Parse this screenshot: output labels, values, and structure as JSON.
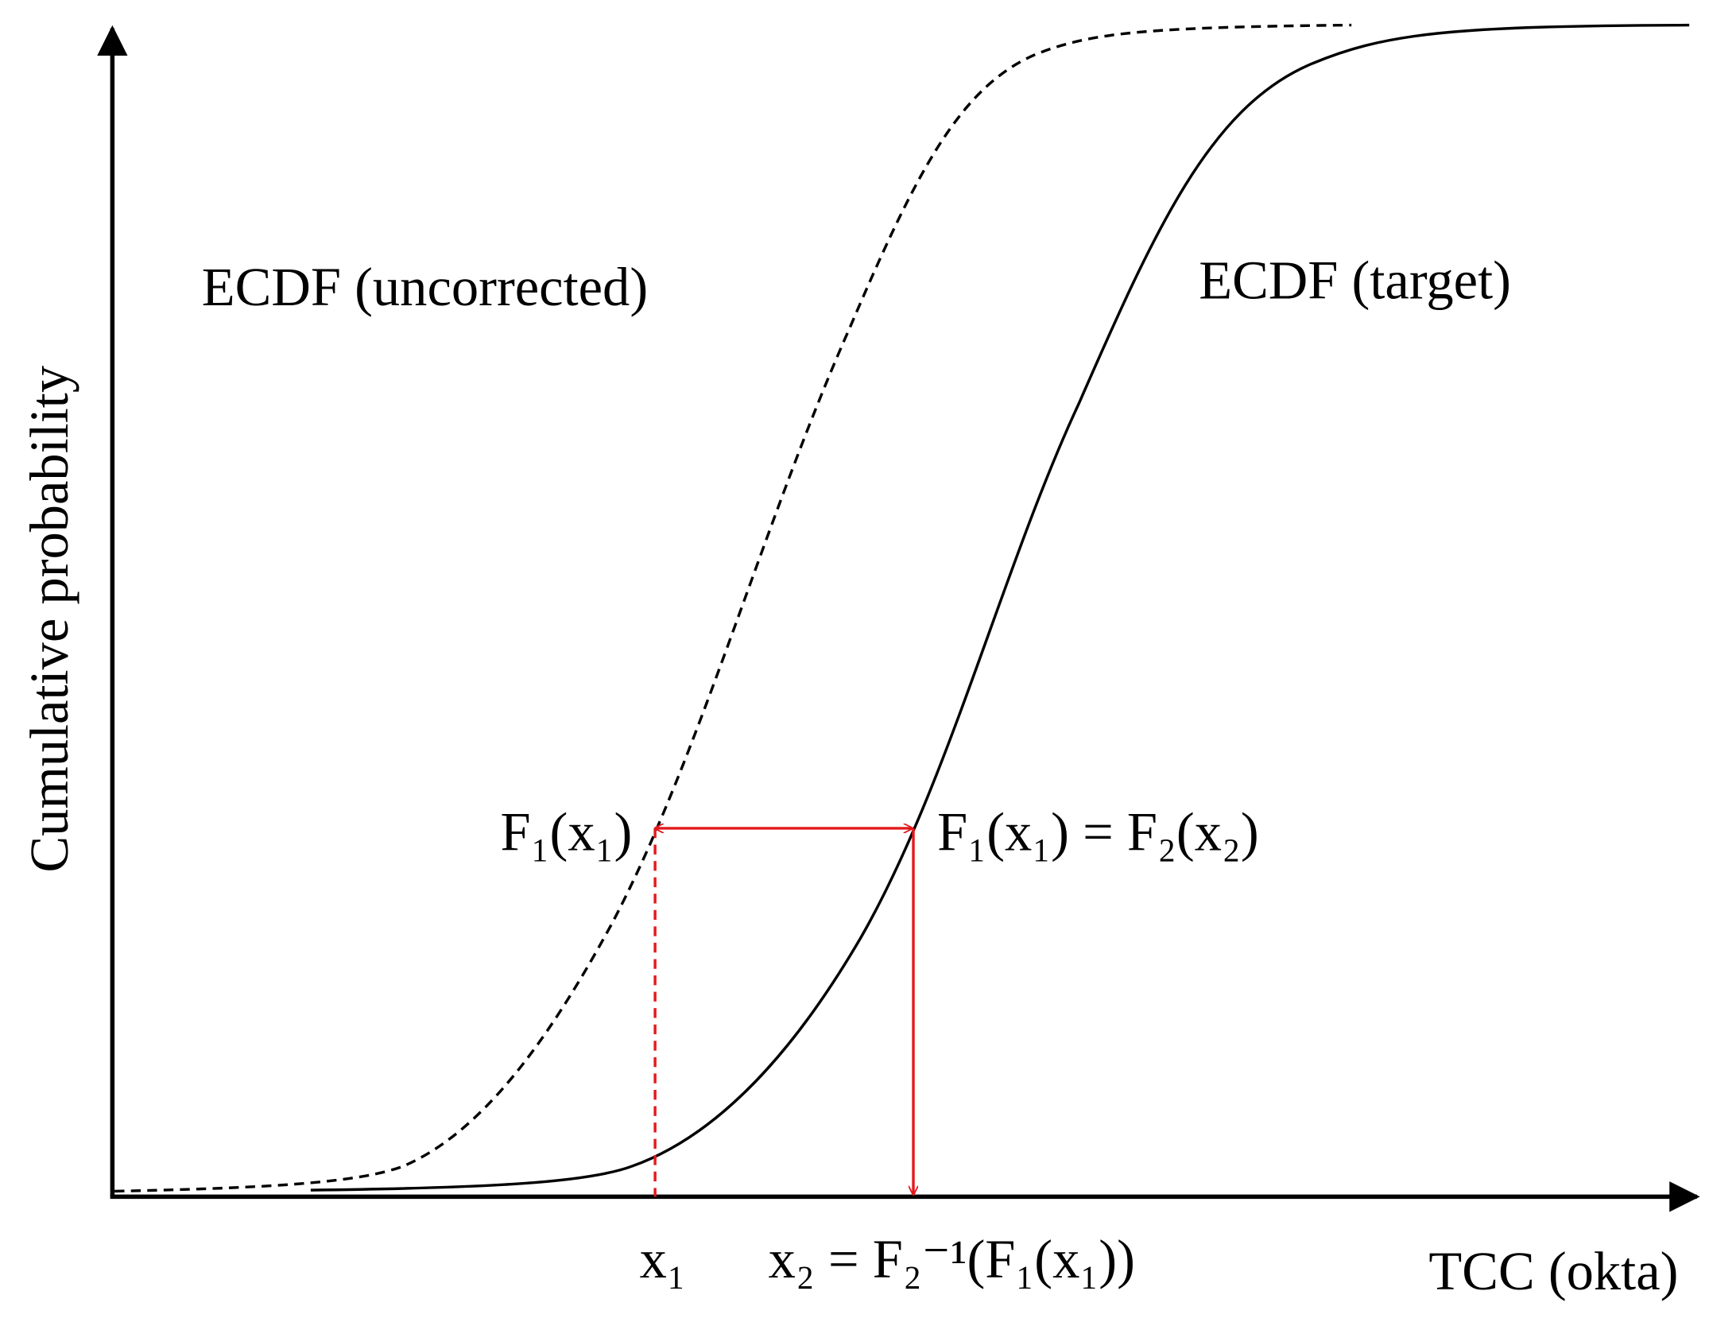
{
  "axes": {
    "y_label": "Cumulative probability",
    "x_label": "TCC (okta)"
  },
  "curves": [
    {
      "label": "ECDF (uncorrected)"
    },
    {
      "label": "ECDF (target)"
    }
  ],
  "annotations": {
    "f1_x1": "F₁(x₁)",
    "equality": "F₁(x₁) = F₂(x₂)",
    "x1": "x₁",
    "x2": "x₂ = F₂⁻¹(F₁(x₁))"
  }
}
